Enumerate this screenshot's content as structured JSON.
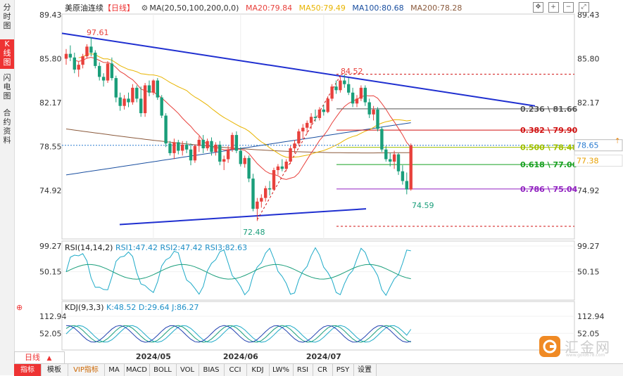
{
  "sidebar": {
    "tabs": [
      {
        "label": "分时图",
        "active": false
      },
      {
        "label": "K线图",
        "active": true
      },
      {
        "label": "闪电图",
        "active": false
      },
      {
        "label": "合约资料",
        "active": false
      }
    ]
  },
  "legend": {
    "title": "美原油连续",
    "period_tag": "【日线】",
    "ma_params": "MA(20,50,100,200,0,0)",
    "ma20": "MA20:79.84",
    "ma50": "MA50:79.49",
    "ma100": "MA100:80.68",
    "ma200": "MA200:78.28"
  },
  "rsi_legend": {
    "params": "RSI(14,14,2)",
    "rsi1": "RSI1:47.42",
    "rsi2": "RSI2:47.42",
    "rsi3": "RSI3:82.63"
  },
  "kdj_legend": {
    "params": "KDJ(9,3,3)",
    "k": "K:48.52",
    "d": "D:29.64",
    "j": "J:86.27"
  },
  "period_selector": {
    "label": "日线",
    "arrow": "▲"
  },
  "bottom_tabs": [
    "指标",
    "模板",
    "VIP指标",
    "MA",
    "MACD",
    "BOLL",
    "VOL",
    "BIAS",
    "CCI",
    "KDJ",
    "LW%",
    "RSI",
    "CR",
    "PSY",
    "设置"
  ],
  "logo": {
    "text": "汇金网",
    "url_text": "www.gold678.com"
  },
  "colors": {
    "up": "#e8413c",
    "down": "#1a9e7a",
    "ma20": "#e8413c",
    "ma50": "#e8b400",
    "ma100": "#1a4fa0",
    "ma200": "#8b5a3c",
    "trendline": "#1f2fd0"
  },
  "chart_data": [
    {
      "type": "candlestick",
      "title": "美原油连续",
      "ylim": [
        72.48,
        89.43
      ],
      "y_ticks": [
        "89.43",
        "85.80",
        "82.17",
        "78.55",
        "74.92"
      ],
      "x_ticks": [
        "2024/05",
        "2024/06",
        "2024/07"
      ],
      "current_price": "78.65",
      "extra_price_label": "77.38",
      "annotations": {
        "high": "97.61",
        "mid_high": "84.52",
        "low": "72.48",
        "last_low": "74.59"
      },
      "fibonacci": [
        {
          "label": "0.236 \\ 81.66",
          "value": 81.66,
          "color": "#555555"
        },
        {
          "label": "0.382 \\ 79.90",
          "value": 79.9,
          "color": "#d01010"
        },
        {
          "label": "0.500 \\ 78.48",
          "value": 78.48,
          "color": "#a0c000"
        },
        {
          "label": "0.618 \\ 77.06",
          "value": 77.06,
          "color": "#18a020"
        },
        {
          "label": "0.786 \\ 75.04",
          "value": 75.04,
          "color": "#9020c0"
        }
      ],
      "candles": [
        [
          85.8,
          86.6,
          85.3,
          86.2
        ],
        [
          86.2,
          86.9,
          85.6,
          85.9
        ],
        [
          85.9,
          86.3,
          84.6,
          84.9
        ],
        [
          84.9,
          85.6,
          84.3,
          85.3
        ],
        [
          85.3,
          86.2,
          85.0,
          86.0
        ],
        [
          86.0,
          87.0,
          85.8,
          86.8
        ],
        [
          86.8,
          87.6,
          86.0,
          86.3
        ],
        [
          86.3,
          86.5,
          85.0,
          85.2
        ],
        [
          85.2,
          85.5,
          84.0,
          84.3
        ],
        [
          84.3,
          84.6,
          83.5,
          84.0
        ],
        [
          84.0,
          85.6,
          83.8,
          85.4
        ],
        [
          85.4,
          85.9,
          84.0,
          84.2
        ],
        [
          84.2,
          84.4,
          82.2,
          82.6
        ],
        [
          82.6,
          83.0,
          81.5,
          81.9
        ],
        [
          81.9,
          82.8,
          81.6,
          82.5
        ],
        [
          82.5,
          83.0,
          81.8,
          82.2
        ],
        [
          82.2,
          83.7,
          82.0,
          83.4
        ],
        [
          83.4,
          83.6,
          82.2,
          82.5
        ],
        [
          82.5,
          83.5,
          81.0,
          81.3
        ],
        [
          81.3,
          83.8,
          81.0,
          83.6
        ],
        [
          83.6,
          84.0,
          82.7,
          83.0
        ],
        [
          83.0,
          84.1,
          82.8,
          84.0
        ],
        [
          84.0,
          84.2,
          82.4,
          82.6
        ],
        [
          82.6,
          82.8,
          80.9,
          81.1
        ],
        [
          81.1,
          81.3,
          78.5,
          78.8
        ],
        [
          78.8,
          79.0,
          77.8,
          78.0
        ],
        [
          78.0,
          79.2,
          77.5,
          78.9
        ],
        [
          78.9,
          79.1,
          77.9,
          78.2
        ],
        [
          78.2,
          79.0,
          77.8,
          78.7
        ],
        [
          78.7,
          79.0,
          78.0,
          78.3
        ],
        [
          78.3,
          78.8,
          77.0,
          77.4
        ],
        [
          77.4,
          78.7,
          77.2,
          78.6
        ],
        [
          78.6,
          79.4,
          78.1,
          79.1
        ],
        [
          79.1,
          79.5,
          78.0,
          78.4
        ],
        [
          78.4,
          79.2,
          78.2,
          79.0
        ],
        [
          79.0,
          79.3,
          77.8,
          78.1
        ],
        [
          78.1,
          78.9,
          77.8,
          78.7
        ],
        [
          78.7,
          79.0,
          77.0,
          77.3
        ],
        [
          77.3,
          77.8,
          76.6,
          77.5
        ],
        [
          77.5,
          78.6,
          77.2,
          78.3
        ],
        [
          78.3,
          79.7,
          78.1,
          79.5
        ],
        [
          79.5,
          79.8,
          78.0,
          78.2
        ],
        [
          78.2,
          78.5,
          76.9,
          77.1
        ],
        [
          77.1,
          77.8,
          76.8,
          77.6
        ],
        [
          77.6,
          77.8,
          75.6,
          75.9
        ],
        [
          75.9,
          76.3,
          73.2,
          73.4
        ],
        [
          73.4,
          74.3,
          72.4,
          74.0
        ],
        [
          74.0,
          74.6,
          73.5,
          74.3
        ],
        [
          74.3,
          75.3,
          74.0,
          75.1
        ],
        [
          75.1,
          75.7,
          74.5,
          75.0
        ],
        [
          75.0,
          76.8,
          74.9,
          76.6
        ],
        [
          76.6,
          77.1,
          76.2,
          76.9
        ],
        [
          76.9,
          77.5,
          76.5,
          76.7
        ],
        [
          76.7,
          77.5,
          76.5,
          77.3
        ],
        [
          77.3,
          78.6,
          77.1,
          78.4
        ],
        [
          78.4,
          79.1,
          78.0,
          78.8
        ],
        [
          78.8,
          80.0,
          78.6,
          79.8
        ],
        [
          79.8,
          80.4,
          79.2,
          80.1
        ],
        [
          80.1,
          80.7,
          79.6,
          80.5
        ],
        [
          80.5,
          81.3,
          80.0,
          81.0
        ],
        [
          81.0,
          81.6,
          80.6,
          80.9
        ],
        [
          80.9,
          81.8,
          80.7,
          81.6
        ],
        [
          81.6,
          82.0,
          81.1,
          81.4
        ],
        [
          81.4,
          82.7,
          81.3,
          82.5
        ],
        [
          82.5,
          83.7,
          82.3,
          83.5
        ],
        [
          83.5,
          84.0,
          82.9,
          83.2
        ],
        [
          83.2,
          84.3,
          83.0,
          84.0
        ],
        [
          84.0,
          84.5,
          83.4,
          83.7
        ],
        [
          83.7,
          84.2,
          82.8,
          83.0
        ],
        [
          83.0,
          83.4,
          81.8,
          82.1
        ],
        [
          82.1,
          82.8,
          81.8,
          82.5
        ],
        [
          82.5,
          83.6,
          82.3,
          83.4
        ],
        [
          83.4,
          83.6,
          81.9,
          82.2
        ],
        [
          82.2,
          82.5,
          80.9,
          81.2
        ],
        [
          81.2,
          81.9,
          80.7,
          81.6
        ],
        [
          81.6,
          81.8,
          79.8,
          80.0
        ],
        [
          80.0,
          80.2,
          78.1,
          78.3
        ],
        [
          78.3,
          78.6,
          77.3,
          77.5
        ],
        [
          77.5,
          78.0,
          76.9,
          77.3
        ],
        [
          77.3,
          78.2,
          76.7,
          77.9
        ],
        [
          77.9,
          78.0,
          76.2,
          76.5
        ],
        [
          76.5,
          77.0,
          75.4,
          75.7
        ],
        [
          75.7,
          76.4,
          74.6,
          75.0
        ],
        [
          75.0,
          78.8,
          74.9,
          78.65
        ]
      ]
    },
    {
      "type": "line",
      "title": "RSI(14,14,2)",
      "y_ticks": [
        "99.27",
        "50.15"
      ]
    },
    {
      "type": "line",
      "title": "KDJ(9,3,3)",
      "y_ticks": [
        "112.94",
        "52.05"
      ]
    }
  ]
}
